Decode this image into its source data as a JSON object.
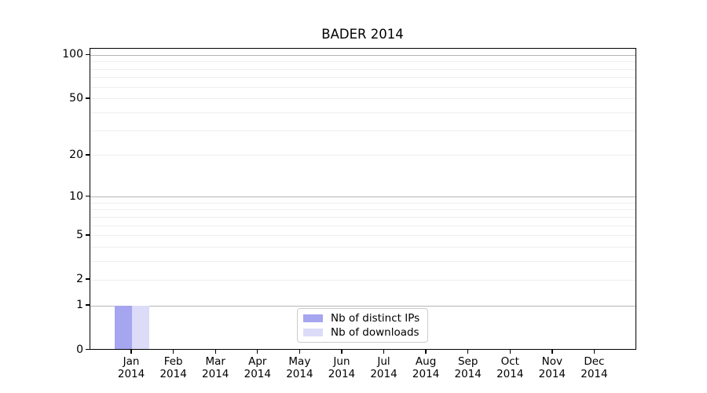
{
  "chart_data": {
    "type": "bar",
    "title": "BADER 2014",
    "categories": [
      "Jan",
      "Feb",
      "Mar",
      "Apr",
      "May",
      "Jun",
      "Jul",
      "Aug",
      "Sep",
      "Oct",
      "Nov",
      "Dec"
    ],
    "category_year": "2014",
    "series": [
      {
        "name": "Nb of distinct IPs",
        "color": "#a5a5f0",
        "values": [
          1,
          0,
          0,
          0,
          0,
          0,
          0,
          0,
          0,
          0,
          0,
          0
        ]
      },
      {
        "name": "Nb of downloads",
        "color": "#dcdcf8",
        "values": [
          1,
          0,
          0,
          0,
          0,
          0,
          0,
          0,
          0,
          0,
          0,
          0
        ]
      }
    ],
    "xlabel": "",
    "ylabel": "",
    "y_axis": {
      "scale": "log1p",
      "max": 111.5,
      "tick_values": [
        0,
        1,
        2,
        5,
        10,
        20,
        50,
        100
      ],
      "major_gridlines": [
        1,
        10,
        100
      ],
      "minor_gridlines": [
        2,
        3,
        4,
        5,
        6,
        7,
        8,
        9,
        20,
        30,
        40,
        50,
        60,
        70,
        80,
        90
      ]
    },
    "legend_position": "bottom-center",
    "colors": {
      "major_grid": "#b5b5b5",
      "minor_grid": "#eeeeee",
      "axis": "#000000",
      "legend_border": "#cccccc",
      "background": "#ffffff"
    }
  }
}
